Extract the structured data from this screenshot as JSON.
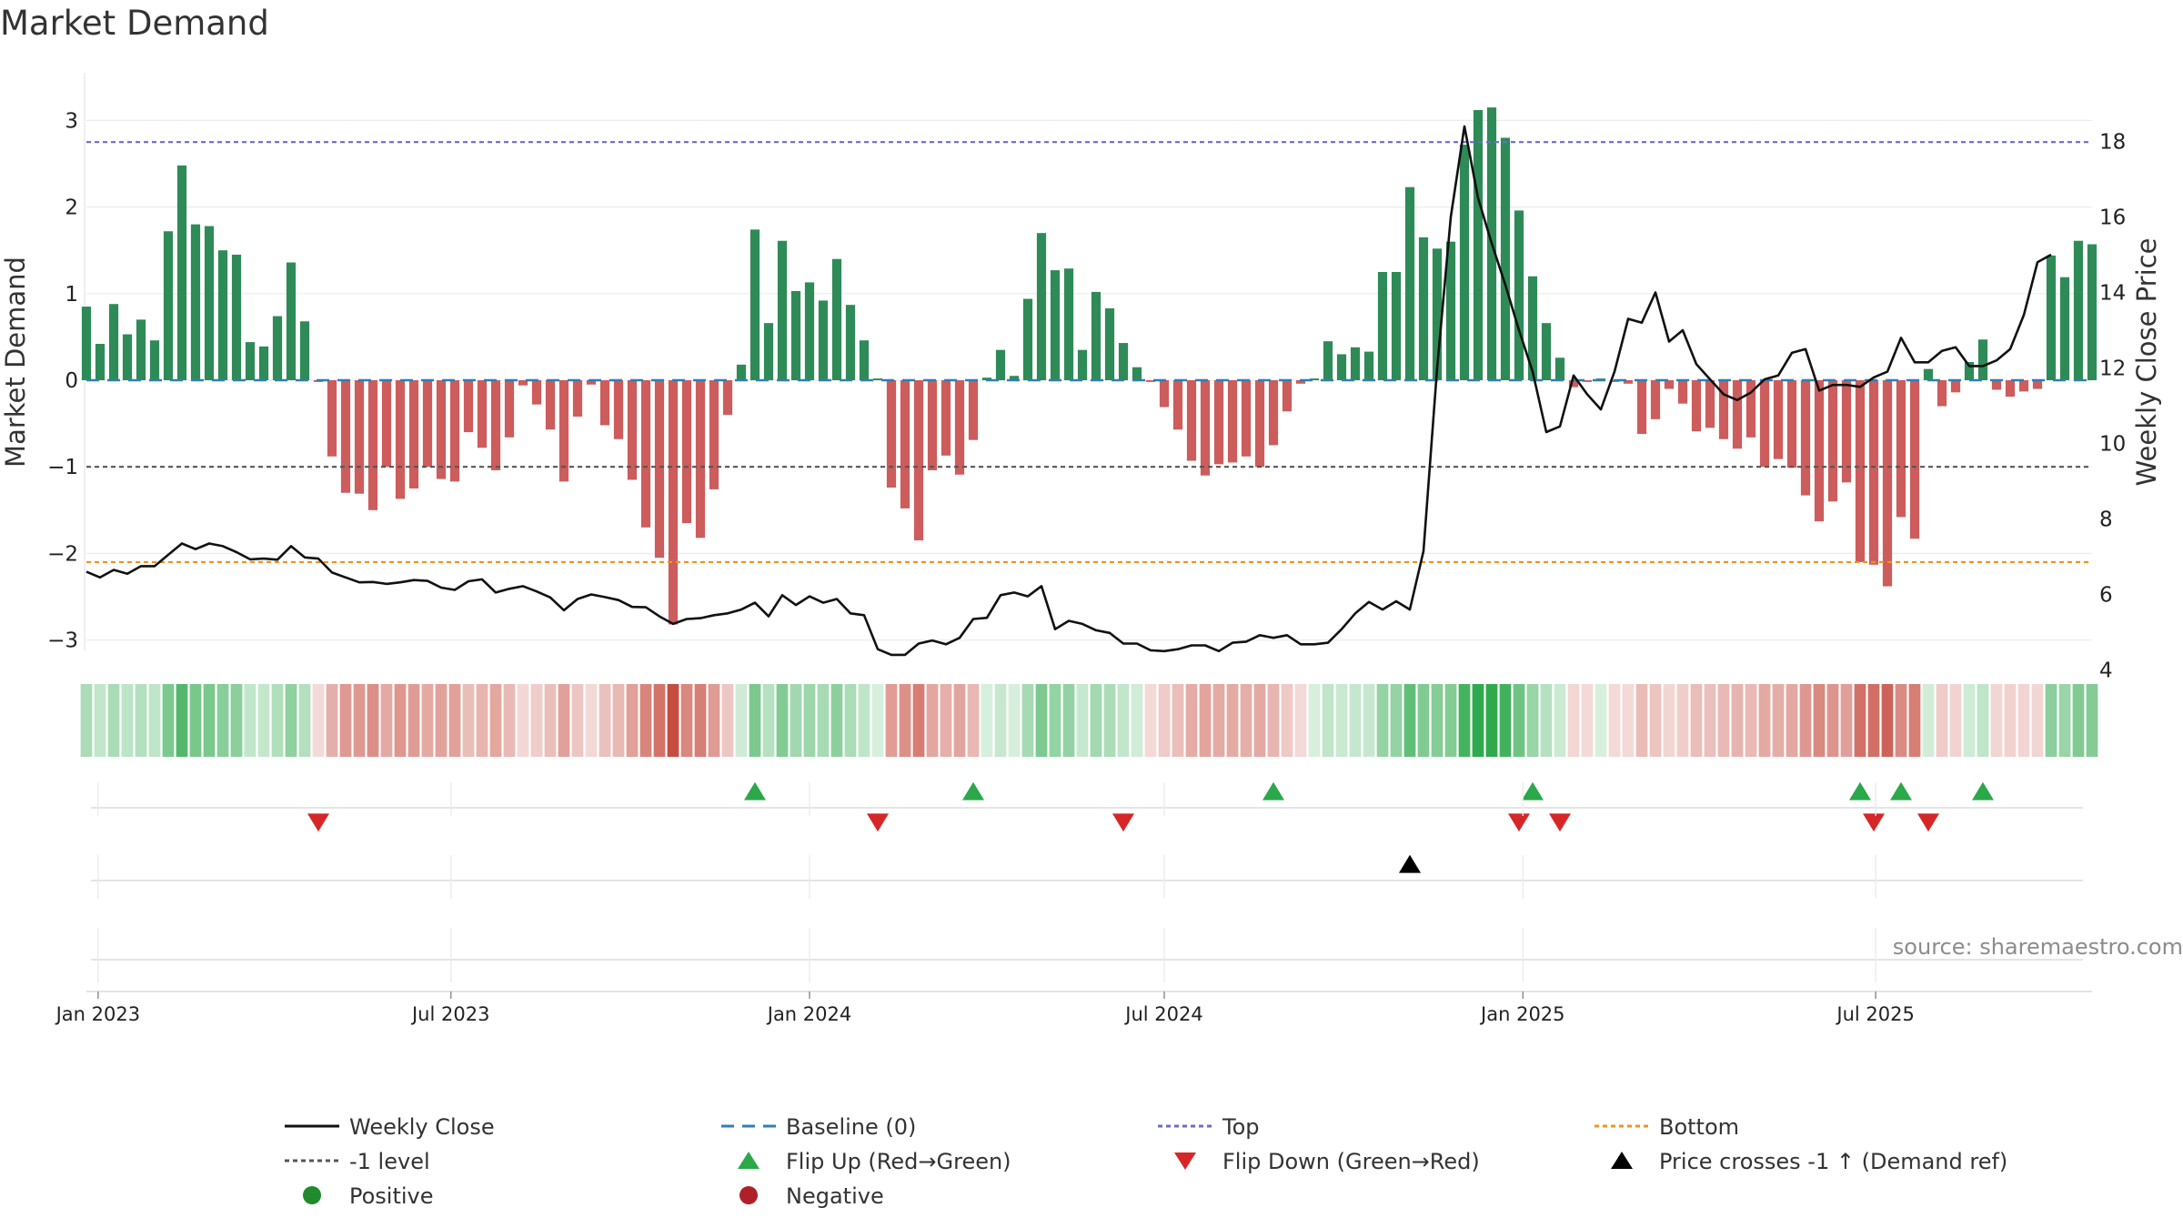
{
  "chart_data": {
    "type": "bar",
    "title": "Market Demand",
    "ylabel_left": "Market Demand",
    "ylabel_right": "Weekly Close Price",
    "ylim_left": [
      -3.3,
      3.5
    ],
    "ylim_right": [
      3.6,
      19
    ],
    "yticks_left": [
      "3",
      "2",
      "1",
      "0",
      "−1",
      "−2",
      "−3"
    ],
    "yticks_left_values": [
      3,
      2,
      1,
      0,
      -1,
      -2,
      -3
    ],
    "yticks_right": [
      "18",
      "16",
      "14",
      "12",
      "10",
      "8",
      "6",
      "4"
    ],
    "yticks_right_values": [
      18,
      16,
      14,
      12,
      10,
      8,
      6,
      4
    ],
    "x_start": "2022-12-26",
    "x_interval_days": 7,
    "xticks": [
      {
        "label": "Jan 2023",
        "date": "2023-01-01"
      },
      {
        "label": "Jul 2023",
        "date": "2023-07-01"
      },
      {
        "label": "Jan 2024",
        "date": "2024-01-01"
      },
      {
        "label": "Jul 2024",
        "date": "2024-07-01"
      },
      {
        "label": "Jan 2025",
        "date": "2025-01-01"
      },
      {
        "label": "Jul 2025",
        "date": "2025-07-01"
      }
    ],
    "reference_lines": {
      "baseline": 0,
      "minus_one": -1,
      "top": 2.75,
      "bottom": -2.1
    },
    "demand": [
      0.85,
      0.42,
      0.88,
      0.53,
      0.7,
      0.46,
      1.72,
      2.48,
      1.8,
      1.78,
      1.5,
      1.45,
      0.44,
      0.39,
      0.74,
      1.36,
      0.68,
      -0.02,
      -0.88,
      -1.3,
      -1.31,
      -1.5,
      -1.0,
      -1.37,
      -1.25,
      -1.0,
      -1.14,
      -1.17,
      -0.6,
      -0.78,
      -1.04,
      -0.66,
      -0.06,
      -0.28,
      -0.57,
      -1.17,
      -0.42,
      -0.05,
      -0.52,
      -0.68,
      -1.15,
      -1.7,
      -2.05,
      -2.82,
      -1.65,
      -1.82,
      -1.26,
      -0.4,
      0.18,
      1.74,
      0.66,
      1.61,
      1.03,
      1.13,
      0.92,
      1.4,
      0.87,
      0.46,
      0.02,
      -1.24,
      -1.48,
      -1.85,
      -1.04,
      -0.87,
      -1.09,
      -0.69,
      0.03,
      0.35,
      0.05,
      0.94,
      1.7,
      1.27,
      1.29,
      0.35,
      1.02,
      0.83,
      0.43,
      0.15,
      -0.02,
      -0.31,
      -0.57,
      -0.93,
      -1.1,
      -0.97,
      -0.95,
      -0.88,
      -1.0,
      -0.75,
      -0.36,
      -0.04,
      0.02,
      0.45,
      0.3,
      0.38,
      0.33,
      1.25,
      1.25,
      2.23,
      1.65,
      1.52,
      1.6,
      2.72,
      3.12,
      3.15,
      2.8,
      1.96,
      1.2,
      0.66,
      0.26,
      -0.08,
      -0.02,
      0.02,
      -0.02,
      -0.04,
      -0.62,
      -0.45,
      -0.1,
      -0.27,
      -0.59,
      -0.55,
      -0.68,
      -0.79,
      -0.66,
      -1.0,
      -0.91,
      -1.01,
      -1.33,
      -1.63,
      -1.4,
      -1.18,
      -2.1,
      -2.13,
      -2.38,
      -1.58,
      -1.83,
      0.13,
      -0.3,
      -0.14,
      0.21,
      0.47,
      -0.11,
      -0.19,
      -0.13,
      -0.1,
      1.44,
      1.19,
      1.61,
      1.57
    ],
    "weekly_close": [
      6.6,
      6.45,
      6.65,
      6.55,
      6.75,
      6.75,
      7.05,
      7.35,
      7.2,
      7.35,
      7.28,
      7.12,
      6.93,
      6.95,
      6.92,
      7.28,
      6.98,
      6.95,
      6.58,
      6.45,
      6.32,
      6.33,
      6.28,
      6.32,
      6.38,
      6.36,
      6.18,
      6.12,
      6.35,
      6.4,
      6.05,
      6.15,
      6.22,
      6.08,
      5.92,
      5.58,
      5.88,
      6.0,
      5.93,
      5.85,
      5.67,
      5.66,
      5.42,
      5.22,
      5.35,
      5.37,
      5.45,
      5.5,
      5.6,
      5.78,
      5.42,
      5.98,
      5.72,
      5.95,
      5.78,
      5.88,
      5.5,
      5.45,
      4.55,
      4.4,
      4.4,
      4.7,
      4.78,
      4.68,
      4.85,
      5.35,
      5.38,
      5.98,
      6.05,
      5.95,
      6.22,
      5.08,
      5.3,
      5.22,
      5.05,
      4.98,
      4.7,
      4.7,
      4.52,
      4.5,
      4.55,
      4.65,
      4.65,
      4.5,
      4.72,
      4.75,
      4.92,
      4.85,
      4.92,
      4.68,
      4.68,
      4.72,
      5.08,
      5.5,
      5.8,
      5.6,
      5.82,
      5.6,
      7.15,
      12.0,
      16.0,
      18.4,
      16.5,
      15.3,
      14.2,
      13.0,
      11.9,
      10.3,
      10.45,
      11.8,
      11.3,
      10.9,
      11.9,
      13.3,
      13.2,
      14.0,
      12.7,
      13.0,
      12.1,
      11.7,
      11.3,
      11.15,
      11.35,
      11.7,
      11.8,
      12.4,
      12.5,
      11.4,
      11.55,
      11.55,
      11.5,
      11.75,
      11.9,
      12.8,
      12.15,
      12.15,
      12.45,
      12.55,
      12.05,
      12.05,
      12.2,
      12.5,
      13.4,
      14.8,
      15.0
    ],
    "flip_up": [
      "2023-12-04",
      "2024-03-25",
      "2024-08-26",
      "2025-01-06",
      "2025-06-23",
      "2025-07-14",
      "2025-08-25"
    ],
    "flip_down": [
      "2023-04-24",
      "2024-02-05",
      "2024-06-10",
      "2024-12-30",
      "2025-01-20",
      "2025-06-30",
      "2025-07-28"
    ],
    "price_cross_up": [
      "2024-11-04"
    ],
    "source": "source: sharemaestro.com",
    "legend": [
      {
        "label": "Weekly Close",
        "kind": "line-solid",
        "color": "#111111"
      },
      {
        "label": "Baseline (0)",
        "kind": "line-dashed",
        "color": "#2f7fb5"
      },
      {
        "label": "Top",
        "kind": "line-dotted",
        "color": "#6b6bd1"
      },
      {
        "label": "Bottom",
        "kind": "line-dotted",
        "color": "#f0921e"
      },
      {
        "label": "-1 level",
        "kind": "line-dotted",
        "color": "#555555"
      },
      {
        "label": "Flip Up (Red→Green)",
        "kind": "tri-up",
        "color": "#2aa84a"
      },
      {
        "label": "Flip Down (Green→Red)",
        "kind": "tri-down",
        "color": "#d62728"
      },
      {
        "label": "Price crosses -1 ↑ (Demand ref)",
        "kind": "tri-up",
        "color": "#000000"
      },
      {
        "label": "Positive",
        "kind": "dot",
        "color": "#1f8b2c"
      },
      {
        "label": "Negative",
        "kind": "dot",
        "color": "#b0202a"
      }
    ],
    "colors": {
      "positive_bar": "#2e8b57",
      "negative_bar": "#cd5c5c",
      "close_line": "#111111",
      "baseline": "#2f7fb5",
      "top": "#6b6bd1",
      "bottom": "#f0921e",
      "minus_one": "#555555",
      "heat_positive": "#2ca84a",
      "heat_negative": "#c0392b"
    }
  }
}
